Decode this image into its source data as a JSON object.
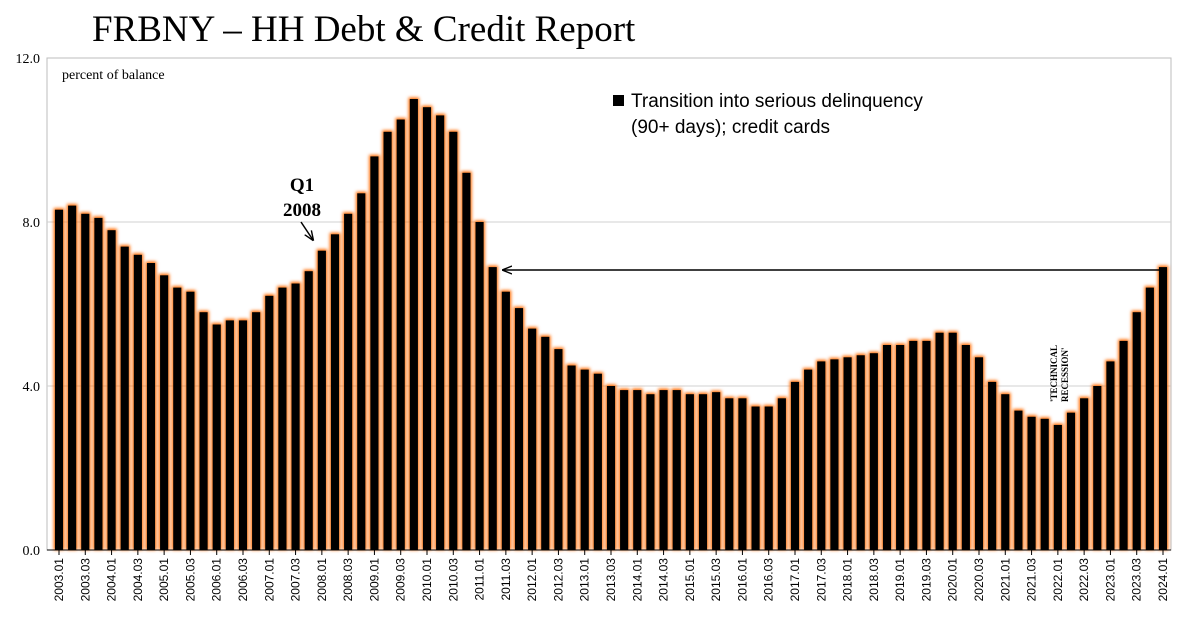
{
  "header": {
    "title": "FRBNY – HH Debt & Credit Report"
  },
  "chart_data": {
    "type": "bar",
    "unit_label": "percent of balance",
    "series_name": "Transition into serious delinquency",
    "series_name_line2": "(90+ days); credit cards",
    "ylim": [
      0,
      12
    ],
    "yticks": [
      "0.0",
      "4.0",
      "8.0",
      "12.0"
    ],
    "grid": true,
    "bar_color": "#000000",
    "glow_color": "#ff6a00",
    "annotations": {
      "q1_label": "Q1",
      "q1_year": "2008",
      "recession_line1": "'TECHNICAL",
      "recession_line2": "RECESSION'"
    },
    "categories": [
      "2003.01",
      "2003.02",
      "2003.03",
      "2003.04",
      "2004.01",
      "2004.02",
      "2004.03",
      "2004.04",
      "2005.01",
      "2005.02",
      "2005.03",
      "2005.04",
      "2006.01",
      "2006.02",
      "2006.03",
      "2006.04",
      "2007.01",
      "2007.02",
      "2007.03",
      "2007.04",
      "2008.01",
      "2008.02",
      "2008.03",
      "2008.04",
      "2009.01",
      "2009.02",
      "2009.03",
      "2009.04",
      "2010.01",
      "2010.02",
      "2010.03",
      "2010.04",
      "2011.01",
      "2011.02",
      "2011.03",
      "2011.04",
      "2012.01",
      "2012.02",
      "2012.03",
      "2012.04",
      "2013.01",
      "2013.02",
      "2013.03",
      "2013.04",
      "2014.01",
      "2014.02",
      "2014.03",
      "2014.04",
      "2015.01",
      "2015.02",
      "2015.03",
      "2015.04",
      "2016.01",
      "2016.02",
      "2016.03",
      "2016.04",
      "2017.01",
      "2017.02",
      "2017.03",
      "2017.04",
      "2018.01",
      "2018.02",
      "2018.03",
      "2018.04",
      "2019.01",
      "2019.02",
      "2019.03",
      "2019.04",
      "2020.01",
      "2020.02",
      "2020.03",
      "2020.04",
      "2021.01",
      "2021.02",
      "2021.03",
      "2021.04",
      "2022.01",
      "2022.02",
      "2022.03",
      "2022.04",
      "2023.01",
      "2023.02",
      "2023.03",
      "2023.04",
      "2024.01"
    ],
    "xticklabels": [
      "2003.01",
      "2003.03",
      "2004.01",
      "2004.03",
      "2005.01",
      "2005.03",
      "2006.01",
      "2006.03",
      "2007.01",
      "2007.03",
      "2008.01",
      "2008.03",
      "2009.01",
      "2009.03",
      "2010.01",
      "2010.03",
      "2011.01",
      "2011.03",
      "2012.01",
      "2012.03",
      "2013.01",
      "2013.03",
      "2014.01",
      "2014.03",
      "2015.01",
      "2015.03",
      "2016.01",
      "2016.03",
      "2017.01",
      "2017.03",
      "2018.01",
      "2018.03",
      "2019.01",
      "2019.03",
      "2020.01",
      "2020.03",
      "2021.01",
      "2021.03",
      "2022.01",
      "2022.03",
      "2023.01",
      "2023.03",
      "2024.01"
    ],
    "values": [
      8.3,
      8.4,
      8.2,
      8.1,
      7.8,
      7.4,
      7.2,
      7.0,
      6.7,
      6.4,
      6.3,
      5.8,
      5.5,
      5.6,
      5.6,
      5.8,
      6.2,
      6.4,
      6.5,
      6.8,
      7.3,
      7.7,
      8.2,
      8.7,
      9.6,
      10.2,
      10.5,
      11.0,
      10.8,
      10.6,
      10.2,
      9.2,
      8.0,
      6.9,
      6.3,
      5.9,
      5.4,
      5.2,
      4.9,
      4.5,
      4.4,
      4.3,
      4.0,
      3.9,
      3.9,
      3.8,
      3.9,
      3.9,
      3.8,
      3.8,
      3.85,
      3.7,
      3.7,
      3.5,
      3.5,
      3.7,
      4.1,
      4.4,
      4.6,
      4.65,
      4.7,
      4.75,
      4.8,
      5.0,
      5.0,
      5.1,
      5.1,
      5.3,
      5.3,
      5.0,
      4.7,
      4.1,
      3.8,
      3.4,
      3.25,
      3.2,
      3.05,
      3.35,
      3.7,
      4.0,
      4.6,
      5.1,
      5.8,
      6.4,
      6.9
    ]
  }
}
